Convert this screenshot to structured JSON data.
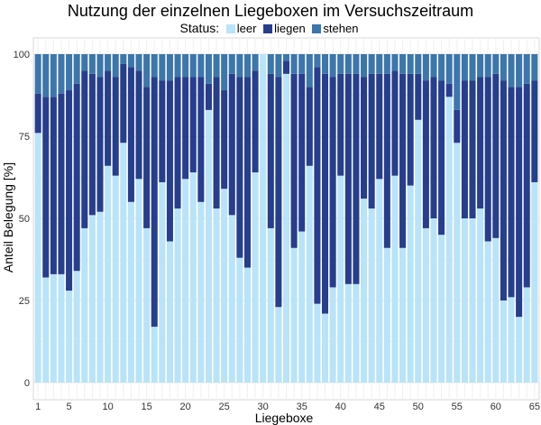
{
  "chart_data": {
    "type": "bar",
    "stacked": true,
    "title": "Nutzung der einzelnen Liegeboxen im Versuchszeitraum",
    "xlabel": "Liegeboxe",
    "ylabel": "Anteil Belegung [%]",
    "legend_title": "Status:",
    "legend_position": "top",
    "ylim": [
      0,
      100
    ],
    "y_ticks": [
      0,
      25,
      50,
      75,
      100
    ],
    "x_ticks": [
      1,
      5,
      10,
      15,
      20,
      25,
      30,
      35,
      40,
      45,
      50,
      55,
      60,
      65
    ],
    "grid": true,
    "categories": [
      1,
      2,
      3,
      4,
      5,
      6,
      7,
      8,
      9,
      10,
      11,
      12,
      13,
      14,
      15,
      16,
      17,
      18,
      19,
      20,
      21,
      22,
      23,
      24,
      25,
      26,
      27,
      28,
      29,
      30,
      31,
      32,
      33,
      34,
      35,
      36,
      37,
      38,
      39,
      40,
      41,
      42,
      43,
      44,
      45,
      46,
      47,
      48,
      49,
      50,
      51,
      52,
      53,
      54,
      55,
      56,
      57,
      58,
      59,
      60,
      61,
      62,
      63,
      64,
      65
    ],
    "series": [
      {
        "name": "leer",
        "color": "#b9e3f8",
        "values": [
          76,
          32,
          33,
          33,
          28,
          34,
          47,
          51,
          52,
          66,
          63,
          73,
          55,
          62,
          47,
          17,
          61,
          43,
          53,
          62,
          64,
          55,
          83,
          53,
          59,
          51,
          38,
          35,
          64,
          100,
          47,
          23,
          94,
          41,
          46,
          66,
          24,
          21,
          29,
          63,
          30,
          30,
          56,
          53,
          62,
          41,
          63,
          41,
          60,
          80,
          47,
          50,
          45,
          87,
          73,
          50,
          50,
          53,
          43,
          44,
          25,
          26,
          20,
          29,
          61
        ]
      },
      {
        "name": "liegen",
        "color": "#273e8d",
        "values": [
          12,
          55,
          54,
          55,
          61,
          57,
          48,
          43,
          41,
          29,
          30,
          24,
          41,
          33,
          43,
          76,
          31,
          49,
          40,
          31,
          29,
          38,
          8,
          40,
          30,
          43,
          55,
          58,
          31,
          0,
          47,
          70,
          4,
          53,
          48,
          24,
          72,
          73,
          64,
          31,
          64,
          64,
          37,
          41,
          32,
          53,
          32,
          53,
          34,
          14,
          45,
          43,
          47,
          4,
          10,
          42,
          42,
          40,
          50,
          50,
          67,
          64,
          70,
          62,
          31
        ]
      },
      {
        "name": "stehen",
        "color": "#3d76ab",
        "values": [
          12,
          13,
          13,
          12,
          11,
          9,
          5,
          6,
          7,
          5,
          7,
          3,
          4,
          5,
          10,
          7,
          8,
          8,
          7,
          7,
          7,
          7,
          9,
          7,
          11,
          6,
          7,
          7,
          5,
          0,
          6,
          7,
          2,
          6,
          6,
          10,
          4,
          6,
          7,
          6,
          6,
          6,
          7,
          6,
          6,
          6,
          5,
          6,
          6,
          6,
          8,
          7,
          8,
          9,
          17,
          8,
          8,
          7,
          7,
          6,
          8,
          10,
          10,
          9,
          8
        ]
      }
    ]
  }
}
